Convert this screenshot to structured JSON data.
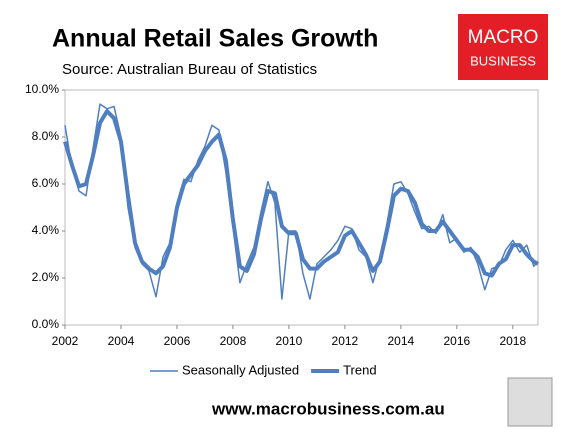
{
  "chart_data": {
    "type": "line",
    "title": "Annual Retail Sales Growth",
    "subtitle": "Source: Australian Bureau of Statistics",
    "logo": [
      "MACRO",
      "BUSINESS"
    ],
    "footer": "www.macrobusiness.com.au",
    "x": [
      2002,
      2002.25,
      2002.5,
      2002.75,
      2003,
      2003.25,
      2003.5,
      2003.75,
      2004,
      2004.25,
      2004.5,
      2004.75,
      2005,
      2005.25,
      2005.5,
      2005.75,
      2006,
      2006.25,
      2006.5,
      2006.75,
      2007,
      2007.25,
      2007.5,
      2007.75,
      2008,
      2008.25,
      2008.5,
      2008.75,
      2009,
      2009.25,
      2009.5,
      2009.75,
      2010,
      2010.25,
      2010.5,
      2010.75,
      2011,
      2011.25,
      2011.5,
      2011.75,
      2012,
      2012.25,
      2012.5,
      2012.75,
      2013,
      2013.25,
      2013.5,
      2013.75,
      2014,
      2014.25,
      2014.5,
      2014.75,
      2015,
      2015.25,
      2015.5,
      2015.75,
      2016,
      2016.25,
      2016.5,
      2016.75,
      2017,
      2017.25,
      2017.5,
      2017.75,
      2018,
      2018.25,
      2018.5,
      2018.75,
      2018.9
    ],
    "series": [
      {
        "name": "Seasonally Adjusted",
        "color": "#4f7fc0",
        "width": 1.5,
        "values": [
          8.5,
          6.7,
          5.7,
          5.5,
          7.5,
          9.4,
          9.2,
          9.3,
          8.0,
          5.0,
          3.3,
          2.6,
          2.3,
          1.2,
          2.9,
          3.5,
          5.2,
          6.2,
          6.1,
          7.0,
          7.6,
          8.5,
          8.3,
          6.5,
          4.2,
          1.8,
          2.6,
          3.3,
          4.8,
          6.1,
          5.2,
          1.1,
          4.0,
          4.0,
          2.2,
          1.1,
          2.6,
          2.9,
          3.2,
          3.6,
          4.2,
          4.1,
          3.2,
          2.9,
          1.8,
          2.9,
          4.3,
          6.0,
          6.1,
          5.6,
          4.8,
          4.1,
          4.2,
          3.9,
          4.7,
          3.5,
          3.7,
          3.1,
          3.3,
          2.6,
          1.5,
          2.4,
          2.5,
          3.2,
          3.6,
          3.1,
          3.4,
          2.5,
          2.7
        ]
      },
      {
        "name": "Trend",
        "color": "#4f7fc0",
        "width": 4,
        "values": [
          7.8,
          6.8,
          5.9,
          6.0,
          7.2,
          8.6,
          9.1,
          8.8,
          7.8,
          5.5,
          3.5,
          2.7,
          2.4,
          2.2,
          2.5,
          3.3,
          5.0,
          6.0,
          6.4,
          6.8,
          7.4,
          7.8,
          8.1,
          7.0,
          4.5,
          2.5,
          2.3,
          3.0,
          4.5,
          5.7,
          5.6,
          4.2,
          3.9,
          3.9,
          2.8,
          2.4,
          2.4,
          2.7,
          2.9,
          3.1,
          3.8,
          4.0,
          3.5,
          3.0,
          2.3,
          2.7,
          4.0,
          5.5,
          5.8,
          5.7,
          5.2,
          4.3,
          4.0,
          4.0,
          4.4,
          4.0,
          3.6,
          3.2,
          3.2,
          2.9,
          2.2,
          2.1,
          2.6,
          2.8,
          3.4,
          3.4,
          3.0,
          2.7,
          2.6
        ]
      }
    ],
    "xlim": [
      2002,
      2018.9
    ],
    "xticks": [
      2002,
      2004,
      2006,
      2008,
      2010,
      2012,
      2014,
      2016,
      2018
    ],
    "ylim": [
      0,
      10
    ],
    "yticks": [
      {
        "value": 0,
        "label": "0.0%"
      },
      {
        "value": 2,
        "label": "2.0%"
      },
      {
        "value": 4,
        "label": "4.0%"
      },
      {
        "value": 6,
        "label": "6.0%"
      },
      {
        "value": 8,
        "label": "8.0%"
      },
      {
        "value": 10,
        "label": "10.0%"
      }
    ],
    "legend": "bottom"
  }
}
